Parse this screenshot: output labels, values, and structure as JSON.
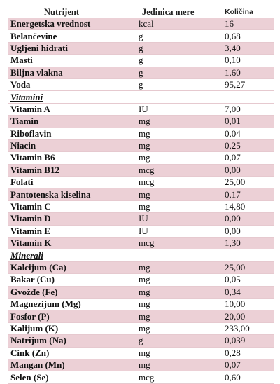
{
  "headers": {
    "nutrient": "Nutrijent",
    "unit": "Jedinica mere",
    "amount": "Količina"
  },
  "rows": [
    {
      "type": "item",
      "shade": "pink",
      "name": "Energetska vrednost",
      "unit": "kcal",
      "amount": "16"
    },
    {
      "type": "item",
      "shade": "white",
      "name": "Belančevine",
      "unit": "g",
      "amount": "0,68"
    },
    {
      "type": "item",
      "shade": "pink",
      "name": "Ugljeni hidrati",
      "unit": "g",
      "amount": "3,40"
    },
    {
      "type": "item",
      "shade": "white",
      "name": "Masti",
      "unit": "g",
      "amount": "0,10"
    },
    {
      "type": "item",
      "shade": "pink",
      "name": "Biljna vlakna",
      "unit": "g",
      "amount": "1,60"
    },
    {
      "type": "item",
      "shade": "white",
      "name": "Voda",
      "unit": "g",
      "amount": "95,27"
    },
    {
      "type": "section",
      "name": "Vitamini"
    },
    {
      "type": "item",
      "shade": "white",
      "name": "Vitamin A",
      "unit": "IU",
      "amount": "7,00"
    },
    {
      "type": "item",
      "shade": "pink",
      "name": "Tiamin",
      "unit": "mg",
      "amount": "0,01"
    },
    {
      "type": "item",
      "shade": "white",
      "name": "Riboflavin",
      "unit": "mg",
      "amount": "0,04"
    },
    {
      "type": "item",
      "shade": "pink",
      "name": "Niacin",
      "unit": "mg",
      "amount": "0,25"
    },
    {
      "type": "item",
      "shade": "white",
      "name": "Vitamin B6",
      "unit": "mg",
      "amount": "0,07"
    },
    {
      "type": "item",
      "shade": "pink",
      "name": "Vitamin B12",
      "unit": "mcg",
      "amount": "0,00"
    },
    {
      "type": "item",
      "shade": "white",
      "name": "Folati",
      "unit": "mcg",
      "amount": "25,00"
    },
    {
      "type": "item",
      "shade": "pink",
      "name": "Pantotenska kiselina",
      "unit": "mg",
      "amount": "0,17"
    },
    {
      "type": "item",
      "shade": "white",
      "name": "Vitamin C",
      "unit": "mg",
      "amount": "14,80"
    },
    {
      "type": "item",
      "shade": "pink",
      "name": "Vitamin D",
      "unit": "IU",
      "amount": "0,00"
    },
    {
      "type": "item",
      "shade": "white",
      "name": "Vitamin E",
      "unit": "IU",
      "amount": "0,00"
    },
    {
      "type": "item",
      "shade": "pink",
      "name": "Vitamin K",
      "unit": "mcg",
      "amount": "1,30"
    },
    {
      "type": "section",
      "name": "Minerali"
    },
    {
      "type": "item",
      "shade": "pink",
      "name": "Kalcijum (Ca)",
      "unit": "mg",
      "amount": "25,00"
    },
    {
      "type": "item",
      "shade": "white",
      "name": "Bakar (Cu)",
      "unit": "mg",
      "amount": "0,05"
    },
    {
      "type": "item",
      "shade": "pink",
      "name": "Gvožđe (Fe)",
      "unit": "mg",
      "amount": "0,34"
    },
    {
      "type": "item",
      "shade": "white",
      "name": "Magnezijum (Mg)",
      "unit": "mg",
      "amount": "10,00"
    },
    {
      "type": "item",
      "shade": "pink",
      "name": "Fosfor (P)",
      "unit": "mg",
      "amount": "20,00"
    },
    {
      "type": "item",
      "shade": "white",
      "name": "Kalijum (K)",
      "unit": "mg",
      "amount": "233,00"
    },
    {
      "type": "item",
      "shade": "pink",
      "name": "Natrijum (Na)",
      "unit": "g",
      "amount": "0,039"
    },
    {
      "type": "item",
      "shade": "white",
      "name": "Cink (Zn)",
      "unit": "mg",
      "amount": "0,28"
    },
    {
      "type": "item",
      "shade": "pink",
      "name": "Mangan (Mn)",
      "unit": "mg",
      "amount": "0,07"
    },
    {
      "type": "item",
      "shade": "white",
      "name": "Selen (Se)",
      "unit": "mcg",
      "amount": "0,60"
    }
  ],
  "colors": {
    "shade_pink": "#ecd0d6",
    "shade_white": "#ffffff"
  }
}
